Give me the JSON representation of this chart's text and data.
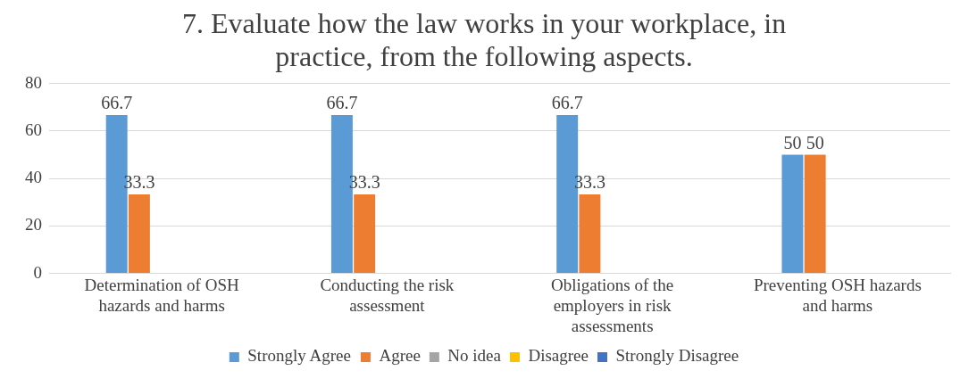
{
  "chart_data": {
    "type": "bar",
    "title": "7. Evaluate how the law works in your workplace, in practice, from the following aspects.",
    "categories": [
      "Determination of OSH hazards and harms",
      "Conducting the risk assessment",
      "Obligations of the employers in risk assessments",
      "Preventing OSH hazards and harms"
    ],
    "series": [
      {
        "name": "Strongly Agree",
        "color": "#5b9bd5",
        "values": [
          66.7,
          66.7,
          66.7,
          50
        ],
        "value_labels": [
          "66.7",
          "66.7",
          "66.7",
          "50"
        ]
      },
      {
        "name": "Agree",
        "color": "#ed7d31",
        "values": [
          33.3,
          33.3,
          33.3,
          50
        ],
        "value_labels": [
          "33.3",
          "33.3",
          "33.3",
          "50"
        ]
      },
      {
        "name": "No idea",
        "color": "#a5a5a5",
        "values": [
          0,
          0,
          0,
          0
        ],
        "value_labels": [
          null,
          null,
          null,
          null
        ]
      },
      {
        "name": "Disagree",
        "color": "#ffc000",
        "values": [
          0,
          0,
          0,
          0
        ],
        "value_labels": [
          null,
          null,
          null,
          null
        ]
      },
      {
        "name": "Strongly Disagree",
        "color": "#4472c4",
        "values": [
          0,
          0,
          0,
          0
        ],
        "value_labels": [
          null,
          null,
          null,
          null
        ]
      }
    ],
    "ylim": [
      0,
      80
    ],
    "yticks": [
      0,
      20,
      40,
      60,
      80
    ],
    "grid": "y",
    "legend": "bottom"
  }
}
